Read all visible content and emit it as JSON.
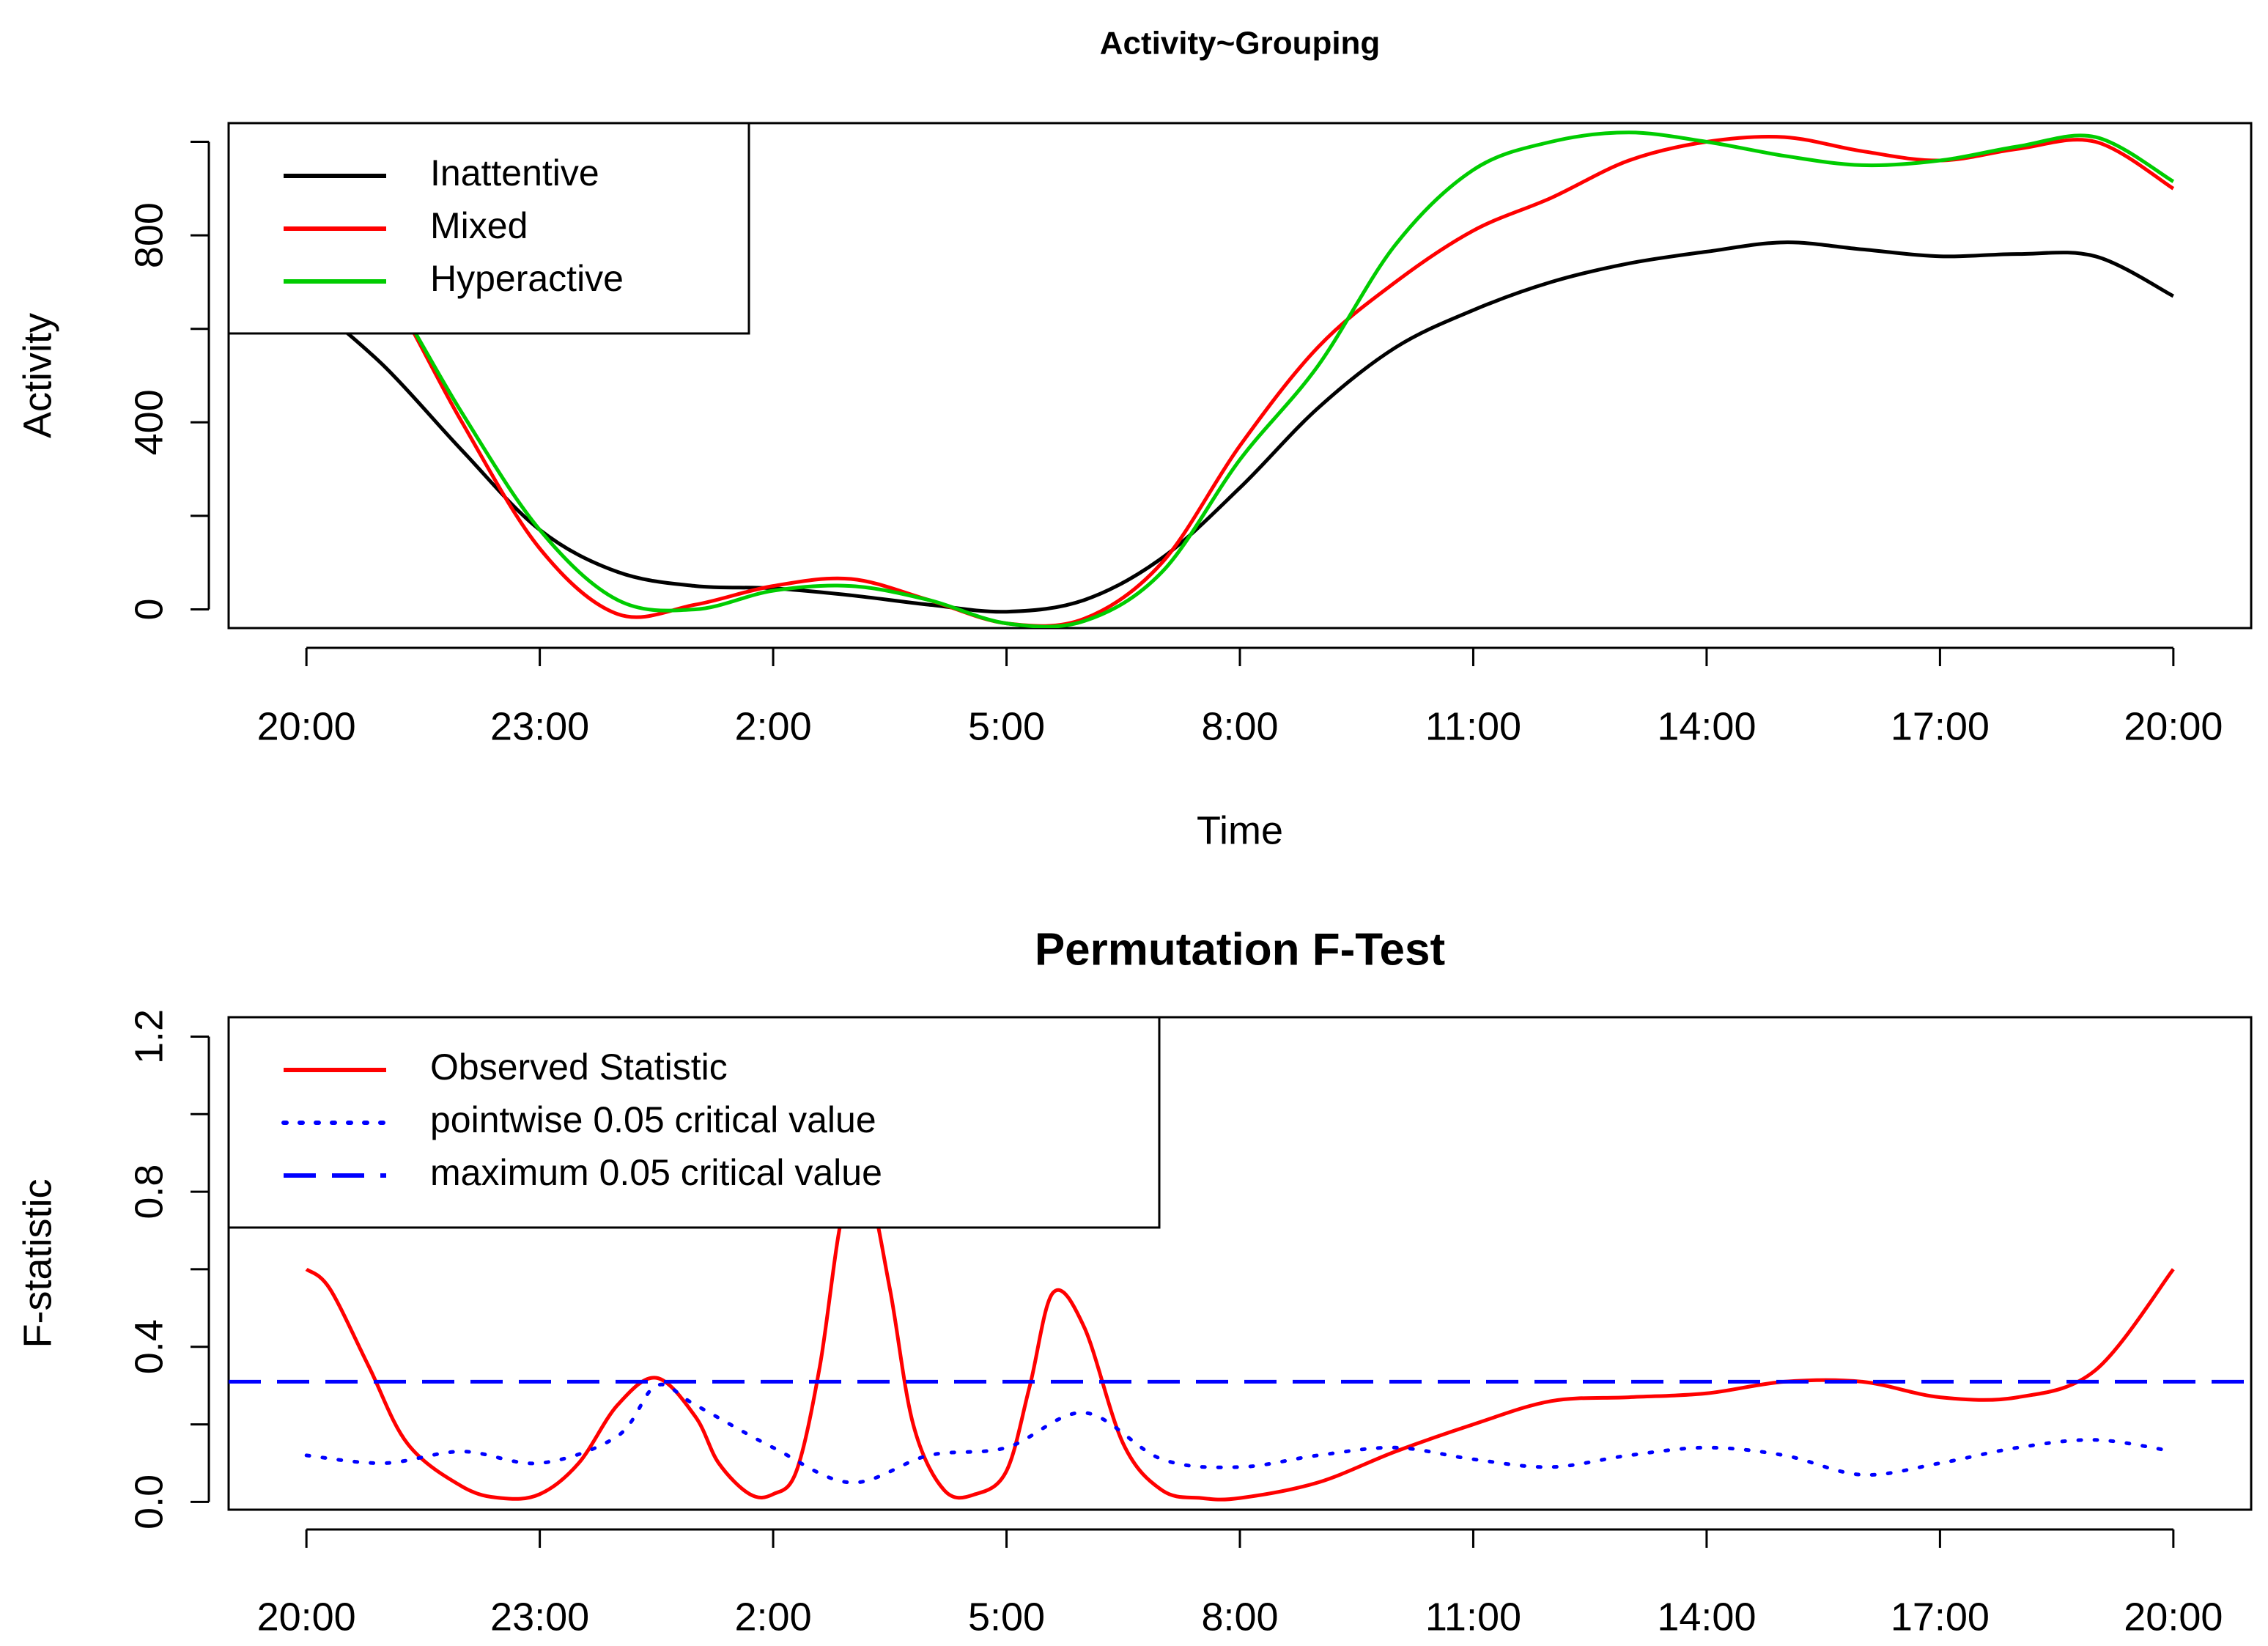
{
  "chart_data": [
    {
      "type": "line",
      "title": "Activity~Grouping",
      "xlabel": "Time",
      "ylabel": "Activity",
      "x_tick_labels": [
        "20:00",
        "23:00",
        "2:00",
        "5:00",
        "8:00",
        "11:00",
        "14:00",
        "17:00",
        "20:00"
      ],
      "x_tick_hours": [
        0,
        3,
        6,
        9,
        12,
        15,
        18,
        21,
        24
      ],
      "xlim": [
        -1,
        25
      ],
      "y_ticks": [
        0,
        200,
        400,
        600,
        800,
        1000
      ],
      "y_tick_labels": [
        "0",
        "",
        "400",
        "",
        "800",
        ""
      ],
      "ylim": [
        -40,
        1040
      ],
      "legend_position": "top-left",
      "series": [
        {
          "name": "Inattentive",
          "color": "#000000",
          "x": [
            0,
            1,
            2,
            3,
            4,
            5,
            6,
            7,
            8,
            9,
            10,
            11,
            12,
            13,
            14,
            15,
            16,
            17,
            18,
            19,
            20,
            21,
            22,
            23,
            24
          ],
          "values": [
            665,
            520,
            340,
            170,
            80,
            50,
            45,
            30,
            10,
            -5,
            20,
            110,
            260,
            430,
            560,
            640,
            700,
            740,
            765,
            785,
            770,
            755,
            760,
            755,
            670
          ]
        },
        {
          "name": "Mixed",
          "color": "#ff0000",
          "x": [
            0,
            1,
            2,
            3,
            4,
            5,
            6,
            7,
            8,
            9,
            10,
            11,
            12,
            13,
            14,
            15,
            16,
            17,
            18,
            19,
            20,
            21,
            22,
            23,
            24
          ],
          "values": [
            900,
            700,
            400,
            130,
            -10,
            10,
            50,
            65,
            20,
            -30,
            -20,
            100,
            350,
            560,
            700,
            810,
            880,
            960,
            1000,
            1010,
            980,
            960,
            985,
            1000,
            900
          ]
        },
        {
          "name": "Hyperactive",
          "color": "#00cc00",
          "x": [
            0,
            1,
            2,
            3,
            4,
            5,
            6,
            7,
            8,
            9,
            10,
            11,
            12,
            13,
            14,
            15,
            16,
            17,
            18,
            19,
            20,
            21,
            22,
            23,
            24
          ],
          "values": [
            910,
            700,
            420,
            170,
            20,
            0,
            40,
            50,
            20,
            -30,
            -25,
            80,
            320,
            520,
            780,
            940,
            1000,
            1020,
            1000,
            970,
            950,
            960,
            990,
            1010,
            915
          ]
        }
      ]
    },
    {
      "type": "line",
      "title": "Permutation F-Test",
      "xlabel": "",
      "ylabel": "F-statistic",
      "x_tick_labels": [
        "20:00",
        "23:00",
        "2:00",
        "5:00",
        "8:00",
        "11:00",
        "14:00",
        "17:00",
        "20:00"
      ],
      "x_tick_hours": [
        0,
        3,
        6,
        9,
        12,
        15,
        18,
        21,
        24
      ],
      "xlim": [
        -1,
        25
      ],
      "y_ticks": [
        0.0,
        0.2,
        0.4,
        0.6,
        0.8,
        1.0,
        1.2
      ],
      "y_tick_labels": [
        "0.0",
        "",
        "0.4",
        "",
        "0.8",
        "",
        "1.2"
      ],
      "ylim": [
        -0.02,
        1.25
      ],
      "legend_position": "top-left",
      "series": [
        {
          "name": "Observed Statistic",
          "color": "#ff0000",
          "style": "solid",
          "x": [
            0,
            0.3,
            0.8,
            1.3,
            2,
            2.5,
            3,
            3.5,
            4,
            4.5,
            5,
            5.3,
            5.7,
            6,
            6.3,
            6.6,
            6.9,
            7.2,
            7.5,
            7.8,
            8.2,
            8.6,
            9,
            9.3,
            9.6,
            10,
            10.5,
            11,
            11.5,
            12,
            13,
            14,
            15,
            16,
            17,
            18,
            19,
            20,
            21,
            22,
            23,
            24
          ],
          "values": [
            0.6,
            0.55,
            0.35,
            0.15,
            0.04,
            0.01,
            0.02,
            0.1,
            0.25,
            0.32,
            0.22,
            0.1,
            0.02,
            0.02,
            0.08,
            0.35,
            0.75,
            0.82,
            0.55,
            0.2,
            0.03,
            0.02,
            0.08,
            0.3,
            0.54,
            0.45,
            0.15,
            0.03,
            0.01,
            0.01,
            0.05,
            0.13,
            0.2,
            0.26,
            0.27,
            0.28,
            0.31,
            0.31,
            0.27,
            0.27,
            0.34,
            0.6
          ]
        },
        {
          "name": "pointwise 0.05 critical value",
          "color": "#0000ff",
          "style": "dotted",
          "x": [
            0,
            1,
            2,
            3,
            4,
            4.5,
            5,
            6,
            7,
            8,
            9,
            10,
            11,
            12,
            13,
            14,
            15,
            16,
            17,
            18,
            19,
            20,
            21,
            22,
            23,
            24
          ],
          "values": [
            0.12,
            0.1,
            0.13,
            0.1,
            0.17,
            0.3,
            0.25,
            0.14,
            0.05,
            0.12,
            0.14,
            0.23,
            0.11,
            0.09,
            0.12,
            0.14,
            0.11,
            0.09,
            0.12,
            0.14,
            0.12,
            0.07,
            0.1,
            0.14,
            0.16,
            0.13
          ]
        },
        {
          "name": "maximum 0.05 critical value",
          "color": "#0000ff",
          "style": "dashed",
          "x": [
            -1,
            25
          ],
          "values": [
            0.31,
            0.31
          ]
        }
      ]
    }
  ]
}
